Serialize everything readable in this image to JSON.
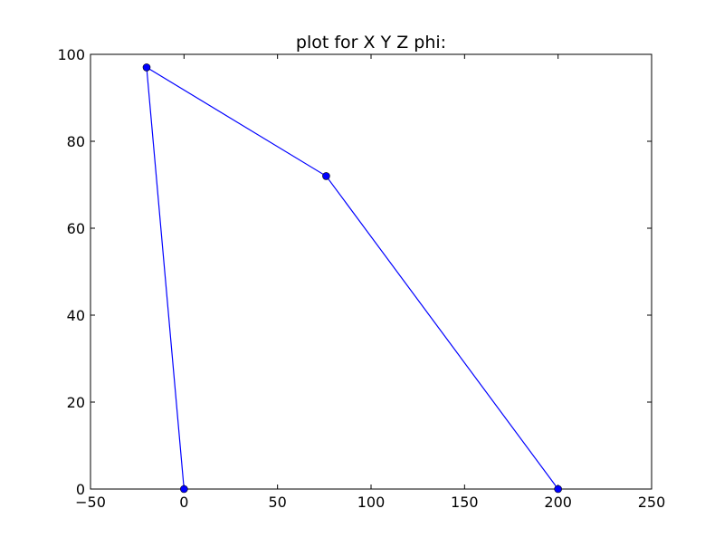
{
  "chart_data": {
    "type": "line",
    "title": "plot for X Y Z phi:",
    "xlabel": "",
    "ylabel": "",
    "xlim": [
      -50,
      250
    ],
    "ylim": [
      0,
      100
    ],
    "xticks": [
      -50,
      0,
      50,
      100,
      150,
      200,
      250
    ],
    "yticks": [
      0,
      20,
      40,
      60,
      80,
      100
    ],
    "xtick_labels": [
      "−50",
      "0",
      "50",
      "100",
      "150",
      "200",
      "250"
    ],
    "ytick_labels": [
      "0",
      "20",
      "40",
      "60",
      "80",
      "100"
    ],
    "grid": false,
    "series": [
      {
        "color": "#0000ff",
        "marker": "circle",
        "points": [
          {
            "x": 0,
            "y": 0
          },
          {
            "x": -20,
            "y": 97
          },
          {
            "x": 76,
            "y": 72
          },
          {
            "x": 200,
            "y": 0
          }
        ]
      }
    ]
  }
}
